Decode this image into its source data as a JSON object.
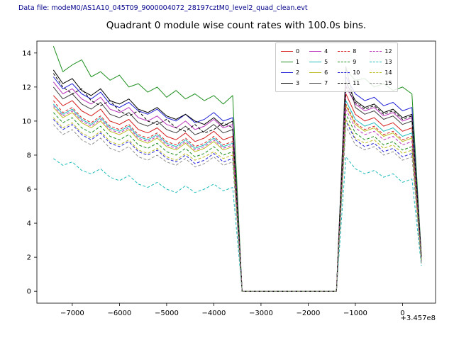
{
  "header": {
    "data_file_label": "Data file: modeM0/AS1A10_045T09_9000004072_28197cztM0_level2_quad_clean.evt",
    "data_file_color": "#00008b"
  },
  "chart_data": {
    "type": "line",
    "title": "Quadrant 0 module wise count rates with 100.0s bins.",
    "xlabel": "",
    "ylabel": "",
    "x_offset_label": "+3.457e8",
    "xlim": [
      -7750,
      700
    ],
    "ylim": [
      -0.7,
      14.7
    ],
    "x_ticks": [
      -7000,
      -6000,
      -5000,
      -4000,
      -3000,
      -2000,
      -1000,
      0
    ],
    "y_ticks": [
      0,
      2,
      4,
      6,
      8,
      10,
      12,
      14
    ],
    "grid": false,
    "legend_position": "upper center-right, 4 columns",
    "x": [
      -7400,
      -7200,
      -7000,
      -6800,
      -6600,
      -6400,
      -6200,
      -6000,
      -5800,
      -5600,
      -5400,
      -5200,
      -5000,
      -4800,
      -4600,
      -4400,
      -4200,
      -4000,
      -3800,
      -3600,
      -3400,
      -3200,
      -3000,
      -2800,
      -2600,
      -2400,
      -2200,
      -2000,
      -1800,
      -1600,
      -1400,
      -1200,
      -1000,
      -800,
      -600,
      -400,
      -200,
      0,
      200,
      400
    ],
    "series": [
      {
        "name": "0",
        "color": "#d62020",
        "dash": false,
        "values": [
          11.5,
          10.9,
          11.2,
          10.6,
          10.3,
          10.7,
          10.0,
          9.8,
          10.1,
          9.5,
          9.3,
          9.6,
          9.1,
          8.9,
          9.3,
          8.8,
          9.0,
          9.4,
          8.9,
          9.1,
          0,
          0,
          0,
          0,
          0,
          0,
          0,
          0,
          0,
          0,
          0,
          11.6,
          10.4,
          10.0,
          10.2,
          9.7,
          9.9,
          9.4,
          9.6,
          1.9
        ]
      },
      {
        "name": "1",
        "color": "#1f8f1f",
        "dash": false,
        "values": [
          14.4,
          12.9,
          13.3,
          13.6,
          12.6,
          12.9,
          12.4,
          12.7,
          12.0,
          12.2,
          11.7,
          12.0,
          11.4,
          11.8,
          11.3,
          11.6,
          11.2,
          11.5,
          11.0,
          11.5,
          0,
          0,
          0,
          0,
          0,
          0,
          0,
          0,
          0,
          0,
          0,
          13.0,
          12.4,
          12.5,
          12.0,
          12.2,
          11.8,
          12.0,
          11.6,
          2.1
        ]
      },
      {
        "name": "2",
        "color": "#2020d6",
        "dash": false,
        "values": [
          12.6,
          11.9,
          12.2,
          11.6,
          11.3,
          11.7,
          11.0,
          10.8,
          11.1,
          10.6,
          10.4,
          10.7,
          10.2,
          10.0,
          10.4,
          9.9,
          10.1,
          10.5,
          10.0,
          10.2,
          0,
          0,
          0,
          0,
          0,
          0,
          0,
          0,
          0,
          0,
          0,
          12.6,
          11.6,
          11.2,
          11.4,
          10.9,
          11.1,
          10.6,
          10.8,
          2.0
        ]
      },
      {
        "name": "3",
        "color": "#000000",
        "dash": false,
        "values": [
          13.0,
          12.2,
          12.5,
          11.8,
          11.5,
          11.9,
          11.2,
          11.0,
          11.3,
          10.7,
          10.5,
          10.8,
          10.3,
          10.1,
          10.4,
          10.0,
          9.8,
          10.2,
          9.7,
          10.0,
          0,
          0,
          0,
          0,
          0,
          0,
          0,
          0,
          0,
          0,
          0,
          12.3,
          11.2,
          10.8,
          11.0,
          10.5,
          10.7,
          10.2,
          10.4,
          2.0
        ]
      },
      {
        "name": "4",
        "color": "#bb33bb",
        "dash": false,
        "values": [
          12.3,
          11.6,
          11.9,
          11.3,
          11.0,
          11.4,
          10.7,
          10.5,
          10.8,
          10.2,
          10.0,
          10.3,
          9.8,
          9.6,
          10.0,
          9.5,
          9.7,
          10.1,
          9.6,
          9.8,
          0,
          0,
          0,
          0,
          0,
          0,
          0,
          0,
          0,
          0,
          0,
          12.1,
          11.0,
          10.6,
          10.8,
          10.3,
          10.5,
          10.0,
          10.2,
          2.0
        ]
      },
      {
        "name": "5",
        "color": "#22bcbc",
        "dash": false,
        "values": [
          11.0,
          10.4,
          10.7,
          10.1,
          9.8,
          10.2,
          9.6,
          9.4,
          9.7,
          9.1,
          8.9,
          9.2,
          8.7,
          8.5,
          8.9,
          8.4,
          8.6,
          9.0,
          8.5,
          8.7,
          0,
          0,
          0,
          0,
          0,
          0,
          0,
          0,
          0,
          0,
          0,
          11.2,
          10.1,
          9.7,
          9.9,
          9.4,
          9.6,
          9.1,
          9.3,
          1.9
        ]
      },
      {
        "name": "6",
        "color": "#bcbc22",
        "dash": false,
        "values": [
          10.8,
          10.2,
          10.5,
          9.9,
          9.6,
          10.0,
          9.4,
          9.2,
          9.5,
          8.9,
          8.7,
          9.0,
          8.5,
          8.3,
          8.7,
          8.2,
          8.4,
          8.8,
          8.3,
          8.5,
          0,
          0,
          0,
          0,
          0,
          0,
          0,
          0,
          0,
          0,
          0,
          10.9,
          9.8,
          9.4,
          9.6,
          9.1,
          9.3,
          8.8,
          9.0,
          1.8
        ]
      },
      {
        "name": "7",
        "color": "#404040",
        "dash": false,
        "values": [
          12.0,
          11.3,
          11.6,
          11.0,
          10.7,
          11.1,
          10.4,
          10.2,
          10.5,
          9.9,
          9.7,
          10.0,
          9.5,
          9.3,
          9.7,
          9.2,
          9.4,
          9.8,
          9.3,
          9.5,
          0,
          0,
          0,
          0,
          0,
          0,
          0,
          0,
          0,
          0,
          0,
          13.2,
          10.8,
          10.4,
          10.6,
          10.1,
          10.3,
          9.8,
          10.0,
          2.0
        ]
      },
      {
        "name": "8",
        "color": "#d62020",
        "dash": true,
        "values": [
          11.2,
          10.5,
          10.8,
          10.2,
          9.9,
          10.3,
          9.7,
          9.5,
          9.8,
          9.2,
          9.0,
          9.3,
          8.8,
          8.6,
          9.0,
          8.5,
          8.7,
          9.1,
          8.6,
          8.8,
          0,
          0,
          0,
          0,
          0,
          0,
          0,
          0,
          0,
          0,
          0,
          11.0,
          9.9,
          9.5,
          9.7,
          9.2,
          9.4,
          8.9,
          9.1,
          1.9
        ]
      },
      {
        "name": "9",
        "color": "#1f8f1f",
        "dash": true,
        "values": [
          10.5,
          9.9,
          10.2,
          9.6,
          9.3,
          9.7,
          9.1,
          8.9,
          9.2,
          8.6,
          8.4,
          8.7,
          8.2,
          8.0,
          8.4,
          7.9,
          8.1,
          8.5,
          8.0,
          8.2,
          0,
          0,
          0,
          0,
          0,
          0,
          0,
          0,
          0,
          0,
          0,
          10.4,
          9.3,
          8.9,
          9.1,
          8.6,
          8.8,
          8.3,
          8.5,
          1.8
        ]
      },
      {
        "name": "10",
        "color": "#2020d6",
        "dash": true,
        "values": [
          10.1,
          9.5,
          9.8,
          9.2,
          8.9,
          9.3,
          8.7,
          8.5,
          8.8,
          8.2,
          8.0,
          8.3,
          7.8,
          7.6,
          8.0,
          7.5,
          7.7,
          8.1,
          7.6,
          7.8,
          0,
          0,
          0,
          0,
          0,
          0,
          0,
          0,
          0,
          0,
          0,
          10.0,
          8.9,
          8.5,
          8.7,
          8.2,
          8.4,
          7.9,
          8.1,
          1.7
        ]
      },
      {
        "name": "11",
        "color": "#000000",
        "dash": true,
        "values": [
          12.8,
          12.0,
          11.6,
          11.9,
          11.2,
          10.9,
          11.2,
          10.6,
          10.3,
          10.6,
          10.0,
          9.8,
          10.1,
          9.6,
          9.4,
          9.8,
          9.3,
          9.5,
          9.9,
          9.6,
          0,
          0,
          0,
          0,
          0,
          0,
          0,
          0,
          0,
          0,
          0,
          12.0,
          11.1,
          10.7,
          10.9,
          10.4,
          10.6,
          10.1,
          10.3,
          2.0
        ]
      },
      {
        "name": "12",
        "color": "#bb33bb",
        "dash": true,
        "values": [
          10.9,
          10.3,
          10.6,
          10.0,
          9.7,
          10.1,
          9.5,
          9.3,
          9.6,
          9.0,
          8.8,
          9.1,
          8.6,
          8.4,
          8.8,
          8.3,
          8.5,
          8.9,
          8.4,
          8.6,
          0,
          0,
          0,
          0,
          0,
          0,
          0,
          0,
          0,
          0,
          0,
          10.7,
          9.6,
          9.2,
          9.4,
          8.9,
          9.1,
          8.6,
          8.8,
          1.8
        ]
      },
      {
        "name": "13",
        "color": "#22bcbc",
        "dash": true,
        "values": [
          7.8,
          7.4,
          7.6,
          7.1,
          6.9,
          7.2,
          6.7,
          6.5,
          6.8,
          6.3,
          6.1,
          6.4,
          6.0,
          5.8,
          6.2,
          5.8,
          6.0,
          6.3,
          5.9,
          6.1,
          0,
          0,
          0,
          0,
          0,
          0,
          0,
          0,
          0,
          0,
          0,
          7.9,
          7.2,
          6.9,
          7.1,
          6.7,
          6.9,
          6.4,
          6.6,
          1.5
        ]
      },
      {
        "name": "14",
        "color": "#bcbc22",
        "dash": true,
        "values": [
          10.2,
          9.6,
          9.9,
          9.3,
          9.0,
          9.4,
          8.8,
          8.6,
          8.9,
          8.3,
          8.1,
          8.4,
          7.9,
          7.7,
          8.1,
          7.7,
          7.9,
          8.2,
          7.8,
          8.0,
          0,
          0,
          0,
          0,
          0,
          0,
          0,
          0,
          0,
          0,
          0,
          10.1,
          9.0,
          8.7,
          8.9,
          8.4,
          8.6,
          8.1,
          8.3,
          1.7
        ]
      },
      {
        "name": "15",
        "color": "#909090",
        "dash": true,
        "values": [
          9.8,
          9.2,
          9.5,
          8.9,
          8.6,
          9.0,
          8.4,
          8.2,
          8.5,
          7.9,
          7.7,
          8.0,
          7.6,
          7.4,
          7.8,
          7.3,
          7.5,
          7.9,
          7.4,
          7.6,
          0,
          0,
          0,
          0,
          0,
          0,
          0,
          0,
          0,
          0,
          0,
          9.7,
          8.6,
          8.3,
          8.5,
          8.0,
          8.2,
          7.7,
          7.9,
          1.6
        ]
      }
    ]
  }
}
